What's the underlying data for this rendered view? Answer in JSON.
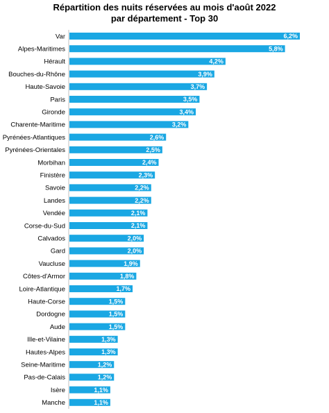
{
  "chart_data": {
    "type": "bar",
    "orientation": "horizontal",
    "title": "Répartition des nuits réservées au mois d'août 2022",
    "subtitle": "par département - Top 30",
    "bar_color": "#1aa7e3",
    "value_label_color": "#ffffff",
    "xlim": [
      0,
      6.5
    ],
    "grid": false,
    "categories": [
      "Var",
      "Alpes-Maritimes",
      "Hérault",
      "Bouches-du-Rhône",
      "Haute-Savoie",
      "Paris",
      "Gironde",
      "Charente-Maritime",
      "Pyrénées-Atlantiques",
      "Pyrénées-Orientales",
      "Morbihan",
      "Finistère",
      "Savoie",
      "Landes",
      "Vendée",
      "Corse-du-Sud",
      "Calvados",
      "Gard",
      "Vaucluse",
      "Côtes-d'Armor",
      "Loire-Atlantique",
      "Haute-Corse",
      "Dordogne",
      "Aude",
      "Ille-et-Vilaine",
      "Hautes-Alpes",
      "Seine-Maritime",
      "Pas-de-Calais",
      "Isère",
      "Manche"
    ],
    "values": [
      6.2,
      5.8,
      4.2,
      3.9,
      3.7,
      3.5,
      3.4,
      3.2,
      2.6,
      2.5,
      2.4,
      2.3,
      2.2,
      2.2,
      2.1,
      2.1,
      2.0,
      2.0,
      1.9,
      1.8,
      1.7,
      1.5,
      1.5,
      1.5,
      1.3,
      1.3,
      1.2,
      1.2,
      1.1,
      1.1
    ],
    "value_labels": [
      "6,2%",
      "5,8%",
      "4,2%",
      "3,9%",
      "3,7%",
      "3,5%",
      "3,4%",
      "3,2%",
      "2,6%",
      "2,5%",
      "2,4%",
      "2,3%",
      "2,2%",
      "2,2%",
      "2,1%",
      "2,1%",
      "2,0%",
      "2,0%",
      "1,9%",
      "1,8%",
      "1,7%",
      "1,5%",
      "1,5%",
      "1,5%",
      "1,3%",
      "1,3%",
      "1,2%",
      "1,2%",
      "1,1%",
      "1,1%"
    ]
  }
}
